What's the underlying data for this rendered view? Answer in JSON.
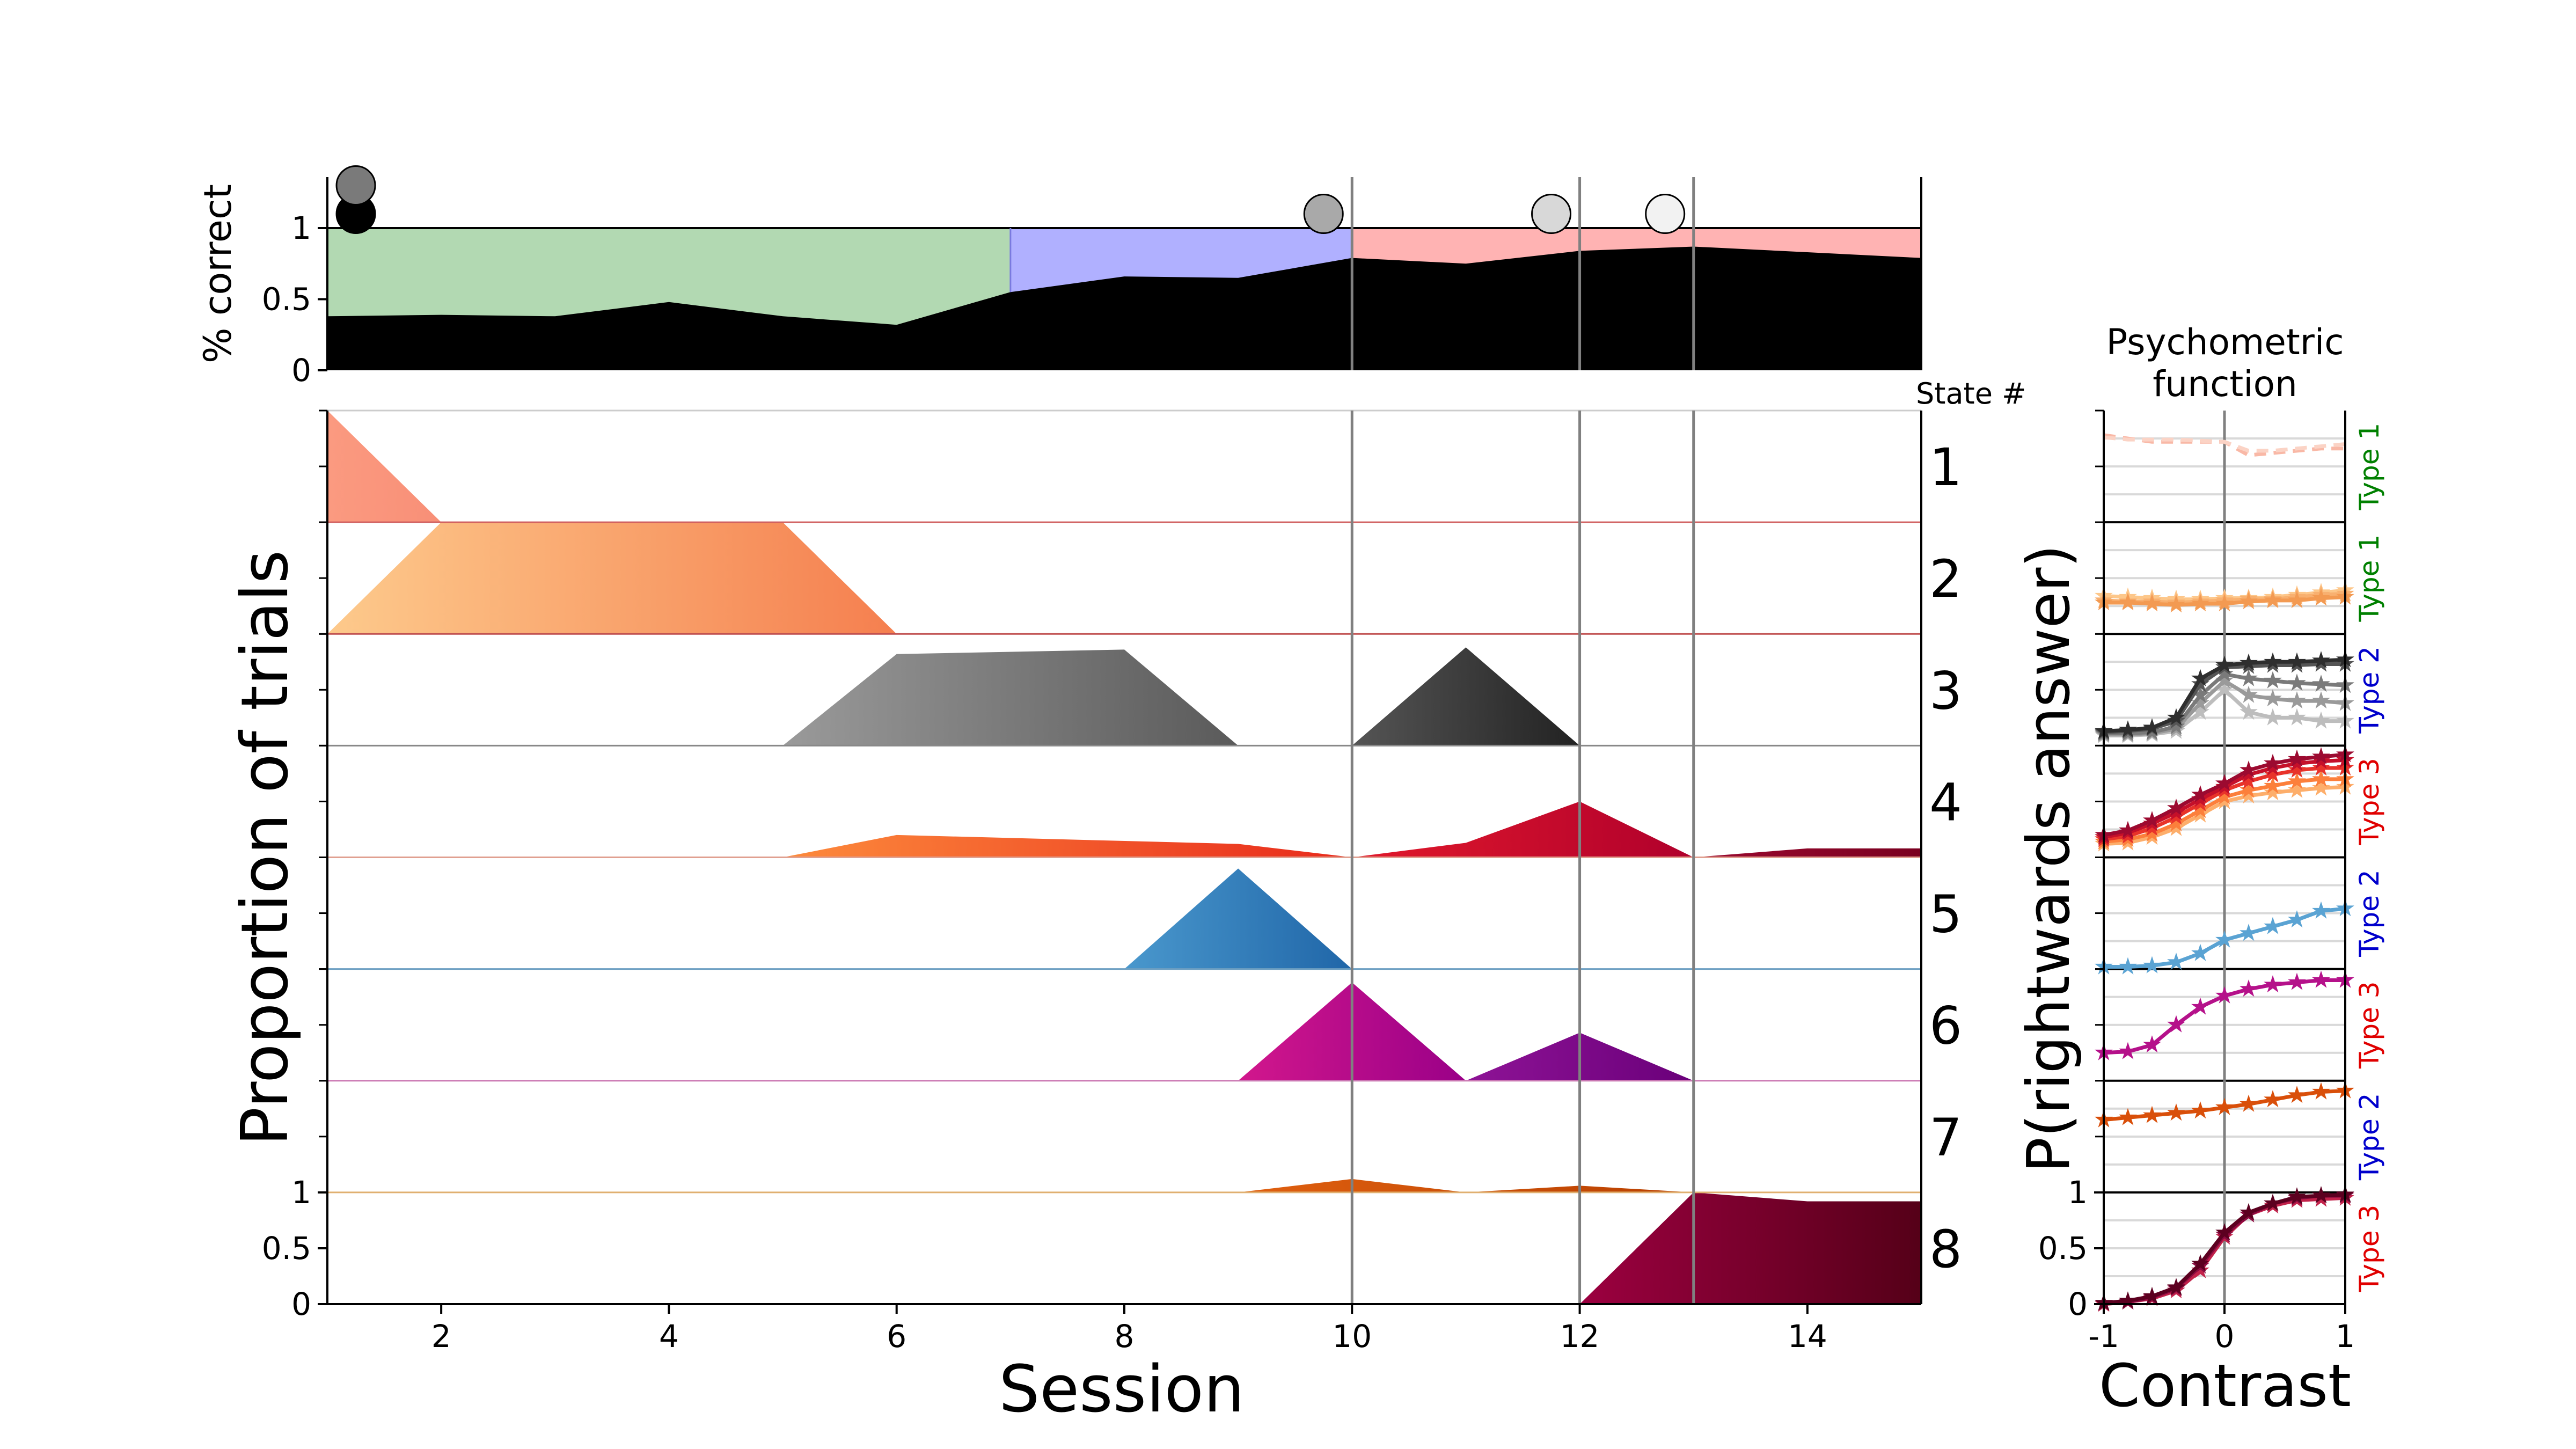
{
  "chart_data": [
    {
      "panel": "accuracy",
      "type": "area",
      "ylabel": "% correct",
      "xlim": [
        1,
        15
      ],
      "ylim": [
        0,
        1.35
      ],
      "yticks": [
        "0",
        "0.5",
        "1"
      ],
      "performance": {
        "x": [
          1,
          2,
          3,
          4,
          5,
          6,
          7,
          8,
          9,
          10,
          11,
          12,
          13,
          14,
          15
        ],
        "y": [
          0.38,
          0.39,
          0.38,
          0.48,
          0.38,
          0.32,
          0.55,
          0.66,
          0.65,
          0.79,
          0.75,
          0.84,
          0.87,
          0.83,
          0.79
        ]
      },
      "phases": [
        {
          "from": 1,
          "to": 7,
          "color": "#b2d9b2"
        },
        {
          "from": 7,
          "to": 10,
          "color": "#b0b0ff"
        },
        {
          "from": 10,
          "to": 15,
          "color": "#ffb3b3"
        }
      ],
      "markers": [
        {
          "x": 1.25,
          "y": 1.1,
          "color": "#000000"
        },
        {
          "x": 1.25,
          "y": 1.3,
          "color": "#7a7a7a"
        },
        {
          "x": 9.75,
          "y": 1.1,
          "color": "#a9a9a9"
        },
        {
          "x": 11.75,
          "y": 1.1,
          "color": "#d8d8d8"
        },
        {
          "x": 12.75,
          "y": 1.1,
          "color": "#f2f2f2"
        }
      ],
      "vlines": [
        10,
        12,
        13
      ]
    },
    {
      "panel": "states",
      "type": "area",
      "xlabel": "Session",
      "ylabel": "Proportion of trials",
      "state_header": "State #",
      "xlim": [
        1,
        15
      ],
      "xticks": [
        "2",
        "4",
        "6",
        "8",
        "10",
        "12",
        "14"
      ],
      "yticks": [
        "0",
        "0.5",
        "1"
      ],
      "vlines": [
        10,
        12,
        13
      ],
      "states": [
        {
          "label": "1",
          "colors": [
            "#fb9a80",
            "#f88f77"
          ],
          "points": [
            [
              1,
              1.0
            ],
            [
              2,
              0
            ]
          ]
        },
        {
          "label": "2",
          "colors": [
            "#fdca8c",
            "#f57f4f"
          ],
          "points": [
            [
              1,
              0
            ],
            [
              2,
              1.0
            ],
            [
              5,
              1.0
            ],
            [
              6,
              0
            ]
          ]
        },
        {
          "label": "3",
          "colors": [
            "#9a9a9a",
            "#5a5a5a"
          ],
          "points": [
            [
              5,
              0
            ],
            [
              6,
              0.82
            ],
            [
              8,
              0.86
            ],
            [
              9,
              0
            ]
          ]
        },
        {
          "label": "3",
          "colors": [
            "#555555",
            "#222222"
          ],
          "points": [
            [
              10,
              0
            ],
            [
              11,
              0.88
            ],
            [
              12,
              0
            ]
          ]
        },
        {
          "label": "4",
          "colors": [
            "#fd8b3c",
            "#e8291b"
          ],
          "points": [
            [
              5,
              0
            ],
            [
              6,
              0.2
            ],
            [
              9,
              0.12
            ],
            [
              10,
              0
            ]
          ]
        },
        {
          "label": "4",
          "colors": [
            "#e2192b",
            "#b0002c"
          ],
          "points": [
            [
              10,
              0
            ],
            [
              11,
              0.13
            ],
            [
              12,
              0.5
            ],
            [
              13,
              0
            ]
          ]
        },
        {
          "label": "4",
          "colors": [
            "#9c0a30",
            "#7a0020"
          ],
          "points": [
            [
              13,
              0
            ],
            [
              14,
              0.08
            ],
            [
              15,
              0.08
            ]
          ]
        },
        {
          "label": "5",
          "colors": [
            "#4a98cd",
            "#2066a8"
          ],
          "points": [
            [
              8,
              0
            ],
            [
              9,
              0.9
            ],
            [
              10,
              0
            ]
          ]
        },
        {
          "label": "6",
          "colors": [
            "#d2178c",
            "#9a0088"
          ],
          "points": [
            [
              9,
              0
            ],
            [
              10,
              0.88
            ],
            [
              11,
              0
            ]
          ]
        },
        {
          "label": "6",
          "colors": [
            "#8e1396",
            "#6a007a"
          ],
          "points": [
            [
              11,
              0
            ],
            [
              12,
              0.43
            ],
            [
              13,
              0
            ]
          ]
        },
        {
          "label": "7",
          "colors": [
            "#e06010",
            "#b84000"
          ],
          "points": [
            [
              9,
              0
            ],
            [
              10,
              0.12
            ],
            [
              11,
              0
            ],
            [
              12,
              0.06
            ],
            [
              13,
              0
            ]
          ]
        },
        {
          "label": "8",
          "colors": [
            "#9c0040",
            "#550018"
          ],
          "points": [
            [
              12,
              0
            ],
            [
              13,
              1.0
            ],
            [
              14,
              0.92
            ],
            [
              15,
              0.92
            ]
          ]
        }
      ],
      "baseline_colors": [
        "#d06060",
        "#c05050",
        "#888888",
        "#e0a090",
        "#6d9fc2",
        "#cc7ab4",
        "#e0b070",
        "#000000"
      ]
    },
    {
      "panel": "psychometric",
      "type": "line",
      "title_lines": [
        "Psychometric",
        "function"
      ],
      "xlabel": "Contrast",
      "ylabel": "P(rightwards answer)",
      "xlim": [
        -1,
        1
      ],
      "ylim": [
        0,
        1
      ],
      "xticks": [
        "-1",
        "0",
        "1"
      ],
      "yticks": [
        "0",
        "0.5",
        "1"
      ],
      "x": [
        -1,
        -0.8,
        -0.6,
        -0.4,
        -0.2,
        0,
        0.2,
        0.4,
        0.6,
        0.8,
        1
      ],
      "rows": [
        {
          "type_label": "Type 1",
          "type_color": "#008000",
          "style": "dashed",
          "markers": false,
          "series": [
            {
              "color": "#f9b8a6",
              "values": [
                0.78,
                0.75,
                0.72,
                0.72,
                0.72,
                0.72,
                0.6,
                0.62,
                0.64,
                0.66,
                0.66
              ]
            },
            {
              "color": "#fbd3c5",
              "values": [
                0.76,
                0.74,
                0.74,
                0.74,
                0.73,
                0.72,
                0.64,
                0.64,
                0.66,
                0.68,
                0.7
              ]
            }
          ]
        },
        {
          "type_label": "Type 1",
          "type_color": "#008000",
          "style": "solid",
          "markers": true,
          "series": [
            {
              "color": "#fdc78a",
              "values": [
                0.34,
                0.33,
                0.32,
                0.31,
                0.31,
                0.32,
                0.32,
                0.33,
                0.35,
                0.37,
                0.39
              ]
            },
            {
              "color": "#f8b070",
              "values": [
                0.3,
                0.29,
                0.29,
                0.28,
                0.29,
                0.3,
                0.31,
                0.31,
                0.33,
                0.35,
                0.36
              ]
            },
            {
              "color": "#f39a52",
              "values": [
                0.28,
                0.28,
                0.27,
                0.26,
                0.27,
                0.27,
                0.29,
                0.3,
                0.3,
                0.32,
                0.33
              ]
            }
          ]
        },
        {
          "type_label": "Type 2",
          "type_color": "#0000cc",
          "style": "solid",
          "markers": true,
          "series": [
            {
              "color": "#bdbdbd",
              "values": [
                0.09,
                0.09,
                0.1,
                0.13,
                0.3,
                0.5,
                0.3,
                0.25,
                0.25,
                0.22,
                0.22
              ]
            },
            {
              "color": "#9a9a9a",
              "values": [
                0.1,
                0.1,
                0.11,
                0.15,
                0.38,
                0.58,
                0.45,
                0.42,
                0.4,
                0.4,
                0.38
              ]
            },
            {
              "color": "#7a7a7a",
              "values": [
                0.11,
                0.11,
                0.12,
                0.17,
                0.45,
                0.64,
                0.6,
                0.58,
                0.56,
                0.55,
                0.54
              ]
            },
            {
              "color": "#555555",
              "values": [
                0.12,
                0.13,
                0.15,
                0.22,
                0.55,
                0.7,
                0.71,
                0.72,
                0.72,
                0.73,
                0.73
              ]
            },
            {
              "color": "#2e2e2e",
              "values": [
                0.13,
                0.14,
                0.16,
                0.25,
                0.6,
                0.72,
                0.74,
                0.75,
                0.75,
                0.76,
                0.77
              ]
            }
          ]
        },
        {
          "type_label": "Type 3",
          "type_color": "#e00000",
          "style": "solid",
          "markers": true,
          "series": [
            {
              "color": "#fdae6b",
              "values": [
                0.12,
                0.13,
                0.18,
                0.26,
                0.38,
                0.5,
                0.55,
                0.58,
                0.6,
                0.62,
                0.63
              ]
            },
            {
              "color": "#fc7f3b",
              "values": [
                0.14,
                0.16,
                0.21,
                0.3,
                0.42,
                0.54,
                0.6,
                0.64,
                0.68,
                0.7,
                0.7
              ]
            },
            {
              "color": "#e8332a",
              "values": [
                0.16,
                0.19,
                0.26,
                0.36,
                0.48,
                0.6,
                0.68,
                0.74,
                0.78,
                0.8,
                0.8
              ]
            },
            {
              "color": "#c5102a",
              "values": [
                0.18,
                0.22,
                0.3,
                0.4,
                0.52,
                0.63,
                0.74,
                0.8,
                0.84,
                0.86,
                0.87
              ]
            },
            {
              "color": "#9c0a30",
              "values": [
                0.2,
                0.24,
                0.33,
                0.44,
                0.56,
                0.66,
                0.78,
                0.84,
                0.88,
                0.9,
                0.92
              ]
            }
          ]
        },
        {
          "type_label": "Type 2",
          "type_color": "#0000cc",
          "style": "solid",
          "markers": true,
          "series": [
            {
              "color": "#5aa3d3",
              "values": [
                0.02,
                0.02,
                0.03,
                0.06,
                0.14,
                0.26,
                0.32,
                0.38,
                0.44,
                0.52,
                0.54
              ]
            }
          ]
        },
        {
          "type_label": "Type 3",
          "type_color": "#e00000",
          "style": "solid",
          "markers": true,
          "series": [
            {
              "color": "#b5118a",
              "values": [
                0.25,
                0.26,
                0.32,
                0.5,
                0.66,
                0.76,
                0.82,
                0.86,
                0.88,
                0.9,
                0.9
              ]
            }
          ]
        },
        {
          "type_label": "Type 2",
          "type_color": "#0000cc",
          "style": "solid",
          "markers": true,
          "series": [
            {
              "color": "#d94f0a",
              "values": [
                0.65,
                0.67,
                0.69,
                0.71,
                0.73,
                0.76,
                0.79,
                0.83,
                0.87,
                0.9,
                0.91
              ]
            }
          ]
        },
        {
          "type_label": "Type 3",
          "type_color": "#e00000",
          "style": "solid",
          "markers": true,
          "series": [
            {
              "color": "#c2224a",
              "values": [
                0.0,
                0.02,
                0.05,
                0.12,
                0.3,
                0.6,
                0.8,
                0.88,
                0.93,
                0.94,
                0.95
              ]
            },
            {
              "color": "#8a0a40",
              "values": [
                0.01,
                0.02,
                0.06,
                0.14,
                0.34,
                0.62,
                0.8,
                0.9,
                0.95,
                0.97,
                0.97
              ]
            },
            {
              "color": "#5c0020",
              "values": [
                0.01,
                0.03,
                0.07,
                0.15,
                0.36,
                0.64,
                0.82,
                0.9,
                0.96,
                0.97,
                0.98
              ]
            }
          ]
        }
      ]
    }
  ]
}
